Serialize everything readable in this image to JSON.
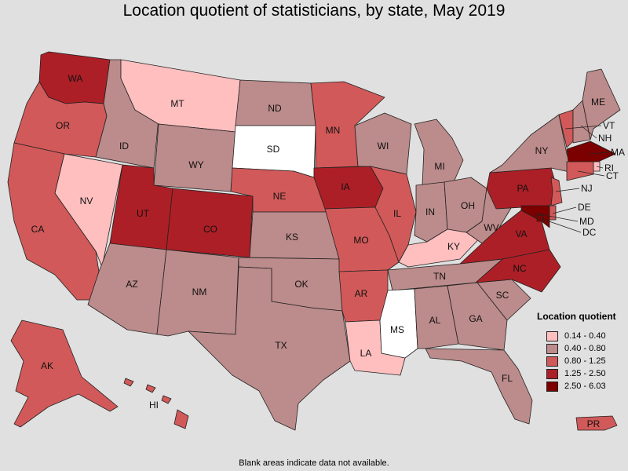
{
  "title": "Location quotient of statisticians, by state, May 2019",
  "footnote": "Blank areas indicate data not available.",
  "legend": {
    "title": "Location quotient",
    "bins": [
      {
        "label": "0.14 - 0.40",
        "color": "#ffbfbf"
      },
      {
        "label": "0.40 - 0.80",
        "color": "#bc8b8b"
      },
      {
        "label": "0.80 - 1.25",
        "color": "#d25959"
      },
      {
        "label": "1.25 - 2.50",
        "color": "#ad1f26"
      },
      {
        "label": "2.50 - 6.03",
        "color": "#7c0000"
      }
    ],
    "no_data_color": "#ffffff"
  },
  "states": {
    "WA": "1.25 - 2.50",
    "OR": "0.80 - 1.25",
    "CA": "0.80 - 1.25",
    "NV": "0.14 - 0.40",
    "ID": "0.40 - 0.80",
    "MT": "0.14 - 0.40",
    "WY": "0.40 - 0.80",
    "UT": "1.25 - 2.50",
    "CO": "1.25 - 2.50",
    "AZ": "0.40 - 0.80",
    "NM": "0.40 - 0.80",
    "ND": "0.40 - 0.80",
    "SD": "no data",
    "NE": "0.80 - 1.25",
    "KS": "0.40 - 0.80",
    "OK": "0.40 - 0.80",
    "TX": "0.40 - 0.80",
    "MN": "0.80 - 1.25",
    "IA": "1.25 - 2.50",
    "MO": "0.80 - 1.25",
    "AR": "0.80 - 1.25",
    "LA": "0.14 - 0.40",
    "WI": "0.40 - 0.80",
    "IL": "0.80 - 1.25",
    "MI": "0.40 - 0.80",
    "IN": "0.40 - 0.80",
    "OH": "0.40 - 0.80",
    "KY": "0.14 - 0.40",
    "TN": "0.40 - 0.80",
    "MS": "no data",
    "AL": "0.40 - 0.80",
    "GA": "0.40 - 0.80",
    "FL": "0.40 - 0.80",
    "SC": "0.40 - 0.80",
    "NC": "1.25 - 2.50",
    "VA": "1.25 - 2.50",
    "WV": "0.40 - 0.80",
    "PA": "1.25 - 2.50",
    "NY": "0.40 - 0.80",
    "VT": "0.80 - 1.25",
    "NH": "0.40 - 0.80",
    "ME": "0.40 - 0.80",
    "MA": "2.50 - 6.03",
    "RI": "0.14 - 0.40",
    "CT": "0.80 - 1.25",
    "NJ": "0.80 - 1.25",
    "DE": "0.80 - 1.25",
    "MD": "2.50 - 6.03",
    "DC": "2.50 - 6.03",
    "AK": "0.80 - 1.25",
    "HI": "0.80 - 1.25",
    "PR": "0.80 - 1.25"
  }
}
